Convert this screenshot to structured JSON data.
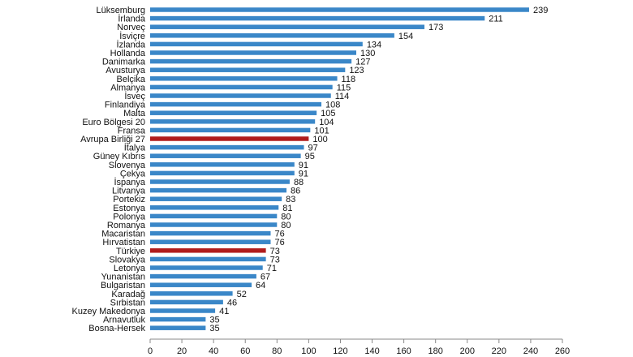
{
  "chart_data": {
    "type": "bar",
    "orientation": "horizontal",
    "grid": false,
    "legend": "none",
    "xlim": [
      0,
      260
    ],
    "x_ticks": [
      0,
      20,
      40,
      60,
      80,
      100,
      120,
      140,
      160,
      180,
      200,
      220,
      240,
      260
    ],
    "categories": [
      "Lüksemburg",
      "İrlanda",
      "Norveç",
      "İsviçre",
      "İzlanda",
      "Hollanda",
      "Danimarka",
      "Avusturya",
      "Belçika",
      "Almanya",
      "İsveç",
      "Finlandiya",
      "Malta",
      "Euro Bölgesi 20",
      "Fransa",
      "Avrupa Birliği 27",
      "İtalya",
      "Güney Kıbrıs",
      "Slovenya",
      "Çekya",
      "İspanya",
      "Litvanya",
      "Portekiz",
      "Estonya",
      "Polonya",
      "Romanya",
      "Macaristan",
      "Hırvatistan",
      "Türkiye",
      "Slovakya",
      "Letonya",
      "Yunanistan",
      "Bulgaristan",
      "Karadağ",
      "Sırbistan",
      "Kuzey Makedonya",
      "Arnavutluk",
      "Bosna-Hersek"
    ],
    "values": [
      239,
      211,
      173,
      154,
      134,
      130,
      127,
      123,
      118,
      115,
      114,
      108,
      105,
      104,
      101,
      100,
      97,
      95,
      91,
      91,
      88,
      86,
      83,
      81,
      80,
      80,
      76,
      76,
      73,
      73,
      71,
      67,
      64,
      52,
      46,
      41,
      35,
      35
    ],
    "highlighted": [
      "Avrupa Birliği 27",
      "Türkiye"
    ],
    "colors": {
      "bar": "#3a87c8",
      "highlight": "#b01c1c",
      "axis": "#888888",
      "text": "#111111"
    }
  }
}
